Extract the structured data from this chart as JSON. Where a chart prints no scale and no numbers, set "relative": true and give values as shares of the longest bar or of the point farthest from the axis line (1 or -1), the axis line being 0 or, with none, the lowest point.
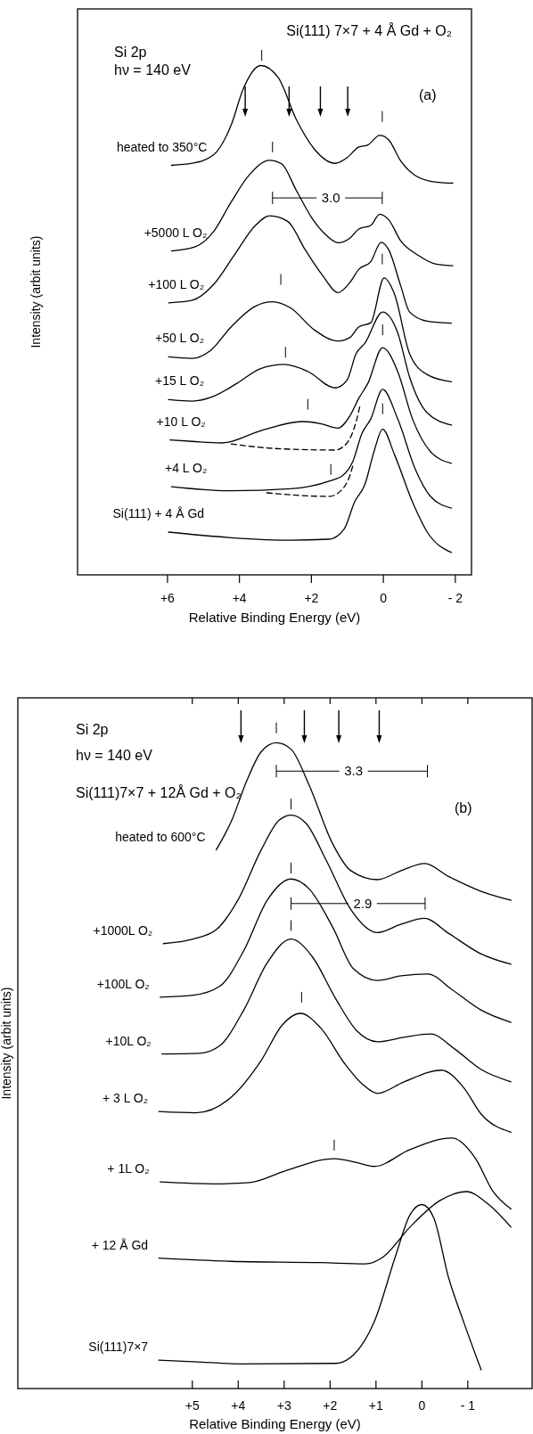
{
  "chart_data": [
    {
      "type": "line",
      "relative": true,
      "title": "Si(111) 7×7 + 4 Å Gd + O₂",
      "xlabel": "Relative Binding Energy (eV)",
      "ylabel": "Intensity (arbit units)",
      "xlim": [
        8.5,
        -2.45
      ],
      "xticks": [
        {
          "value": 6,
          "label": "+6"
        },
        {
          "value": 4,
          "label": "+4"
        },
        {
          "value": 2,
          "label": "+2"
        },
        0,
        {
          "value": -2,
          "label": "- 2"
        }
      ],
      "line_style": "solid",
      "annotations": [
        "Si 2p",
        "hν = 140 eV",
        "(a)",
        "3.0"
      ],
      "series": [
        {
          "name": "heated to 350°C",
          "color": "#000000",
          "x": [
            5.89,
            5.31,
            4.73,
            4.23,
            3.9,
            3.41,
            2.92,
            2.42,
            1.92,
            1.34,
            1.01,
            0.68,
            0.43,
            0.1,
            -0.15,
            -0.48,
            -0.89,
            -1.47,
            -1.93
          ],
          "values": [
            0.804,
            0.808,
            0.824,
            0.883,
            0.953,
            1.0,
            0.976,
            0.894,
            0.836,
            0.808,
            0.819,
            0.84,
            0.844,
            0.863,
            0.854,
            0.813,
            0.784,
            0.771,
            0.769
          ]
        },
        {
          "name": "+5000 L O₂",
          "color": "#000000",
          "x": [
            5.89,
            5.23,
            4.73,
            4.23,
            3.74,
            3.16,
            2.83,
            2.42,
            2.0,
            1.59,
            1.26,
            0.93,
            0.68,
            0.35,
            0.1,
            -0.15,
            -0.48,
            -0.98,
            -1.47,
            -1.93
          ],
          "values": [
            0.636,
            0.644,
            0.673,
            0.732,
            0.784,
            0.814,
            0.807,
            0.755,
            0.702,
            0.667,
            0.652,
            0.661,
            0.679,
            0.686,
            0.708,
            0.697,
            0.656,
            0.627,
            0.61,
            0.607
          ]
        },
        {
          "name": "+100 L O₂",
          "color": "#000000",
          "x": [
            5.97,
            5.31,
            4.73,
            4.15,
            3.57,
            3.16,
            2.66,
            2.17,
            1.67,
            1.26,
            0.93,
            0.68,
            0.35,
            0.06,
            -0.15,
            -0.48,
            -0.73,
            -1.22,
            -1.89
          ],
          "values": [
            0.534,
            0.539,
            0.569,
            0.627,
            0.685,
            0.705,
            0.694,
            0.638,
            0.586,
            0.554,
            0.574,
            0.6,
            0.615,
            0.653,
            0.638,
            0.568,
            0.516,
            0.498,
            0.494
          ]
        },
        {
          "name": "+50 L O₂",
          "color": "#000000",
          "x": [
            5.97,
            5.31,
            4.81,
            4.23,
            3.57,
            3.08,
            2.58,
            1.92,
            1.26,
            0.93,
            0.68,
            0.35,
            -0.02,
            -0.31,
            -0.73,
            -1.22,
            -1.89
          ],
          "values": [
            0.428,
            0.425,
            0.44,
            0.487,
            0.527,
            0.536,
            0.524,
            0.481,
            0.459,
            0.466,
            0.487,
            0.495,
            0.583,
            0.551,
            0.434,
            0.393,
            0.379
          ]
        },
        {
          "name": "+15 L O₂",
          "color": "#000000",
          "x": [
            5.97,
            5.31,
            4.73,
            4.07,
            3.41,
            2.75,
            2.09,
            1.34,
            1.01,
            0.76,
            0.51,
            0.02,
            -0.4,
            -0.73,
            -1.22,
            -1.89
          ],
          "values": [
            0.344,
            0.341,
            0.35,
            0.376,
            0.405,
            0.413,
            0.399,
            0.367,
            0.382,
            0.434,
            0.455,
            0.516,
            0.475,
            0.388,
            0.318,
            0.294
          ]
        },
        {
          "name": "+10 L O₂",
          "color": "#000000",
          "x": [
            5.93,
            5.31,
            4.48,
            3.41,
            2.25,
            1.75,
            1.26,
            0.93,
            0.68,
            0.43,
            0.02,
            -0.4,
            -0.81,
            -1.31,
            -1.89
          ],
          "values": [
            0.265,
            0.262,
            0.259,
            0.283,
            0.301,
            0.297,
            0.288,
            0.312,
            0.347,
            0.376,
            0.446,
            0.399,
            0.306,
            0.242,
            0.219
          ]
        },
        {
          "color": "#000000",
          "line_style": "dashed",
          "x": [
            4.23,
            2.99,
            1.34,
            1.01,
            0.76,
            0.64
          ],
          "values": [
            0.257,
            0.248,
            0.245,
            0.259,
            0.3,
            0.335
          ]
        },
        {
          "name": "+4 L O₂",
          "color": "#000000",
          "x": [
            5.89,
            4.23,
            2.58,
            1.51,
            1.13,
            0.84,
            0.6,
            0.35,
            0.02,
            -0.4,
            -0.89,
            -1.31,
            -1.89
          ],
          "values": [
            0.173,
            0.165,
            0.169,
            0.184,
            0.195,
            0.224,
            0.277,
            0.306,
            0.364,
            0.306,
            0.207,
            0.154,
            0.131
          ]
        },
        {
          "color": "#000000",
          "line_style": "dashed",
          "x": [
            3.24,
            1.51,
            1.17,
            0.93,
            0.83
          ],
          "values": [
            0.161,
            0.154,
            0.166,
            0.195,
            0.219
          ]
        },
        {
          "name": "Si(111) + 4 Å Gd",
          "color": "#000000",
          "x": [
            5.97,
            4.23,
            2.58,
            1.51,
            1.09,
            0.8,
            0.51,
            0.26,
            0.02,
            -0.31,
            -0.81,
            -1.22,
            -1.89
          ],
          "values": [
            0.084,
            0.073,
            0.068,
            0.07,
            0.09,
            0.143,
            0.178,
            0.242,
            0.286,
            0.236,
            0.143,
            0.084,
            0.044
          ]
        }
      ]
    },
    {
      "type": "line",
      "relative": true,
      "title": "Si(111)7×7 + 12Å Gd + O₂",
      "xlabel": "Relative Binding Energy (eV)",
      "ylabel": "Intensity (arbit units)",
      "xlim": [
        8.8,
        -2.4
      ],
      "xticks": [
        {
          "value": 5,
          "label": "+5"
        },
        {
          "value": 4,
          "label": "+4"
        },
        {
          "value": 3,
          "label": "+3"
        },
        {
          "value": 2,
          "label": "+2"
        },
        {
          "value": 1,
          "label": "+1"
        },
        0,
        {
          "value": -1,
          "label": "- 1"
        }
      ],
      "line_style": "solid",
      "annotations": [
        "Si  2p",
        "hν = 140 eV",
        "(b)",
        "3.3",
        "2.9"
      ],
      "series": [
        {
          "name": "heated to 600°C",
          "color": "#000000",
          "x": [
            4.48,
            4.14,
            3.82,
            3.5,
            3.17,
            2.85,
            2.46,
            1.94,
            1.55,
            0.97,
            0.45,
            -0.06,
            -0.58,
            -1.29,
            -1.94
          ],
          "values": [
            0.834,
            0.88,
            0.94,
            0.986,
            1.0,
            0.99,
            0.935,
            0.843,
            0.802,
            0.788,
            0.802,
            0.813,
            0.793,
            0.77,
            0.756
          ]
        },
        {
          "name": "+1000L O₂",
          "color": "#000000",
          "x": [
            5.63,
            4.98,
            4.47,
            4.01,
            3.5,
            3.11,
            2.85,
            2.52,
            2.07,
            1.55,
            0.97,
            0.45,
            -0.06,
            -0.58,
            -1.29,
            -1.94
          ],
          "values": [
            0.689,
            0.696,
            0.711,
            0.756,
            0.834,
            0.88,
            0.888,
            0.875,
            0.816,
            0.742,
            0.706,
            0.719,
            0.728,
            0.705,
            0.673,
            0.657
          ]
        },
        {
          "name": "+100L O₂",
          "color": "#000000",
          "x": [
            5.7,
            4.98,
            4.4,
            3.88,
            3.37,
            2.85,
            2.46,
            1.94,
            1.49,
            0.97,
            0.45,
            -0.13,
            -0.65,
            -1.29,
            -1.94
          ],
          "values": [
            0.606,
            0.609,
            0.623,
            0.678,
            0.756,
            0.789,
            0.774,
            0.714,
            0.65,
            0.632,
            0.639,
            0.642,
            0.618,
            0.586,
            0.567
          ]
        },
        {
          "name": "+10L O₂",
          "color": "#000000",
          "x": [
            5.66,
            4.85,
            4.4,
            3.88,
            3.37,
            2.85,
            2.39,
            1.88,
            1.42,
            0.97,
            0.39,
            -0.19,
            -0.71,
            -1.29,
            -1.94
          ],
          "values": [
            0.518,
            0.519,
            0.531,
            0.586,
            0.659,
            0.696,
            0.669,
            0.604,
            0.554,
            0.537,
            0.544,
            0.549,
            0.526,
            0.494,
            0.475
          ]
        },
        {
          "name": "+ 3 L O₂",
          "color": "#000000",
          "x": [
            5.73,
            4.92,
            4.14,
            3.5,
            3.04,
            2.65,
            2.2,
            1.68,
            1.29,
            0.97,
            0.39,
            -0.42,
            -0.91,
            -1.29,
            -1.94
          ],
          "values": [
            0.429,
            0.427,
            0.452,
            0.508,
            0.563,
            0.581,
            0.558,
            0.503,
            0.471,
            0.457,
            0.475,
            0.493,
            0.466,
            0.425,
            0.397
          ]
        },
        {
          "name": "+ 1L O₂",
          "color": "#000000",
          "x": [
            5.7,
            4.47,
            3.75,
            2.98,
            1.91,
            1.42,
            1.04,
            0.26,
            -0.65,
            -1.17,
            -1.55,
            -1.94
          ],
          "values": [
            0.32,
            0.317,
            0.319,
            0.337,
            0.356,
            0.35,
            0.344,
            0.37,
            0.388,
            0.356,
            0.305,
            0.278
          ]
        },
        {
          "name": "+ 12 Å Gd",
          "color": "#000000",
          "x": [
            5.73,
            4.14,
            2.2,
            1.23,
            0.84,
            0.26,
            -0.39,
            -0.97,
            -1.42,
            -1.94
          ],
          "values": [
            0.202,
            0.197,
            0.195,
            0.193,
            0.204,
            0.25,
            0.291,
            0.305,
            0.287,
            0.25
          ]
        },
        {
          "name": "Si(111)7×7",
          "color": "#000000",
          "x": [
            5.73,
            4.79,
            3.88,
            1.88,
            1.49,
            1.04,
            0.58,
            0.26,
            0,
            -0.26,
            -0.58,
            -0.91,
            -1.29
          ],
          "values": [
            0.044,
            0.041,
            0.038,
            0.039,
            0.052,
            0.103,
            0.204,
            0.269,
            0.285,
            0.264,
            0.172,
            0.103,
            0.029
          ]
        }
      ]
    }
  ]
}
